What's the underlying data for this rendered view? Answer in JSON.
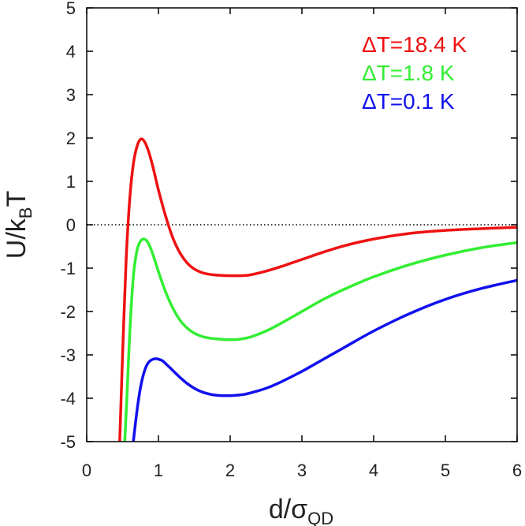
{
  "chart_data": {
    "type": "line",
    "title": "",
    "xlabel": "d/σ",
    "xlabel_sub": "QD",
    "ylabel": "U/k",
    "ylabel_sub": "B",
    "ylabel_suffix": "T",
    "xlim": [
      0,
      6
    ],
    "ylim": [
      -5,
      5
    ],
    "xticks": [
      0,
      1,
      2,
      3,
      4,
      5,
      6
    ],
    "yticks": [
      -5,
      -4,
      -3,
      -2,
      -1,
      0,
      1,
      2,
      3,
      4,
      5
    ],
    "xtick_labels": [
      "0",
      "1",
      "2",
      "3",
      "4",
      "5",
      "6"
    ],
    "ytick_labels": [
      "-5",
      "-4",
      "-3",
      "-2",
      "-1",
      "0",
      "1",
      "2",
      "3",
      "4",
      "5"
    ],
    "grid": false,
    "reference_line": {
      "y": 0,
      "style": "dotted"
    },
    "legend_position": "top-right",
    "series": [
      {
        "name": "ΔT=18.4 K",
        "color": "#ee1111",
        "x": [
          0.46,
          0.5,
          0.55,
          0.6,
          0.65,
          0.7,
          0.75,
          0.8,
          0.85,
          0.9,
          0.95,
          1.0,
          1.1,
          1.2,
          1.3,
          1.4,
          1.5,
          1.6,
          1.7,
          1.8,
          1.9,
          2.0,
          2.1,
          2.2,
          2.3,
          2.5,
          2.7,
          3.0,
          3.3,
          3.6,
          4.0,
          4.5,
          5.0,
          5.5,
          6.0
        ],
        "y": [
          -5.0,
          -3.0,
          -0.8,
          0.6,
          1.4,
          1.8,
          1.97,
          1.93,
          1.75,
          1.48,
          1.15,
          0.8,
          0.2,
          -0.3,
          -0.65,
          -0.88,
          -1.02,
          -1.1,
          -1.14,
          -1.16,
          -1.17,
          -1.175,
          -1.175,
          -1.17,
          -1.15,
          -1.07,
          -0.97,
          -0.8,
          -0.63,
          -0.48,
          -0.33,
          -0.2,
          -0.13,
          -0.09,
          -0.06
        ]
      },
      {
        "name": "ΔT=1.8 K",
        "color": "#33ee33",
        "x": [
          0.53,
          0.56,
          0.6,
          0.65,
          0.7,
          0.75,
          0.8,
          0.85,
          0.9,
          0.95,
          1.0,
          1.1,
          1.2,
          1.3,
          1.4,
          1.5,
          1.6,
          1.7,
          1.8,
          1.9,
          2.0,
          2.1,
          2.2,
          2.3,
          2.5,
          2.7,
          3.0,
          3.3,
          3.6,
          4.0,
          4.5,
          5.0,
          5.5,
          6.0
        ],
        "y": [
          -5.0,
          -4.0,
          -2.5,
          -1.2,
          -0.6,
          -0.38,
          -0.33,
          -0.4,
          -0.58,
          -0.82,
          -1.08,
          -1.55,
          -1.92,
          -2.2,
          -2.38,
          -2.5,
          -2.57,
          -2.61,
          -2.63,
          -2.645,
          -2.65,
          -2.645,
          -2.62,
          -2.58,
          -2.45,
          -2.28,
          -2.0,
          -1.72,
          -1.48,
          -1.2,
          -0.92,
          -0.7,
          -0.53,
          -0.41
        ]
      },
      {
        "name": "ΔT=0.1 K",
        "color": "#1111ee",
        "x": [
          0.65,
          0.7,
          0.75,
          0.8,
          0.85,
          0.9,
          0.95,
          1.0,
          1.05,
          1.1,
          1.2,
          1.3,
          1.4,
          1.5,
          1.6,
          1.7,
          1.8,
          1.9,
          2.0,
          2.1,
          2.2,
          2.3,
          2.5,
          2.7,
          3.0,
          3.3,
          3.6,
          4.0,
          4.5,
          5.0,
          5.5,
          6.0
        ],
        "y": [
          -5.0,
          -4.3,
          -3.75,
          -3.4,
          -3.2,
          -3.12,
          -3.09,
          -3.1,
          -3.13,
          -3.2,
          -3.36,
          -3.52,
          -3.66,
          -3.77,
          -3.85,
          -3.9,
          -3.93,
          -3.94,
          -3.94,
          -3.93,
          -3.91,
          -3.87,
          -3.77,
          -3.63,
          -3.38,
          -3.1,
          -2.82,
          -2.45,
          -2.05,
          -1.72,
          -1.47,
          -1.28
        ]
      }
    ]
  }
}
